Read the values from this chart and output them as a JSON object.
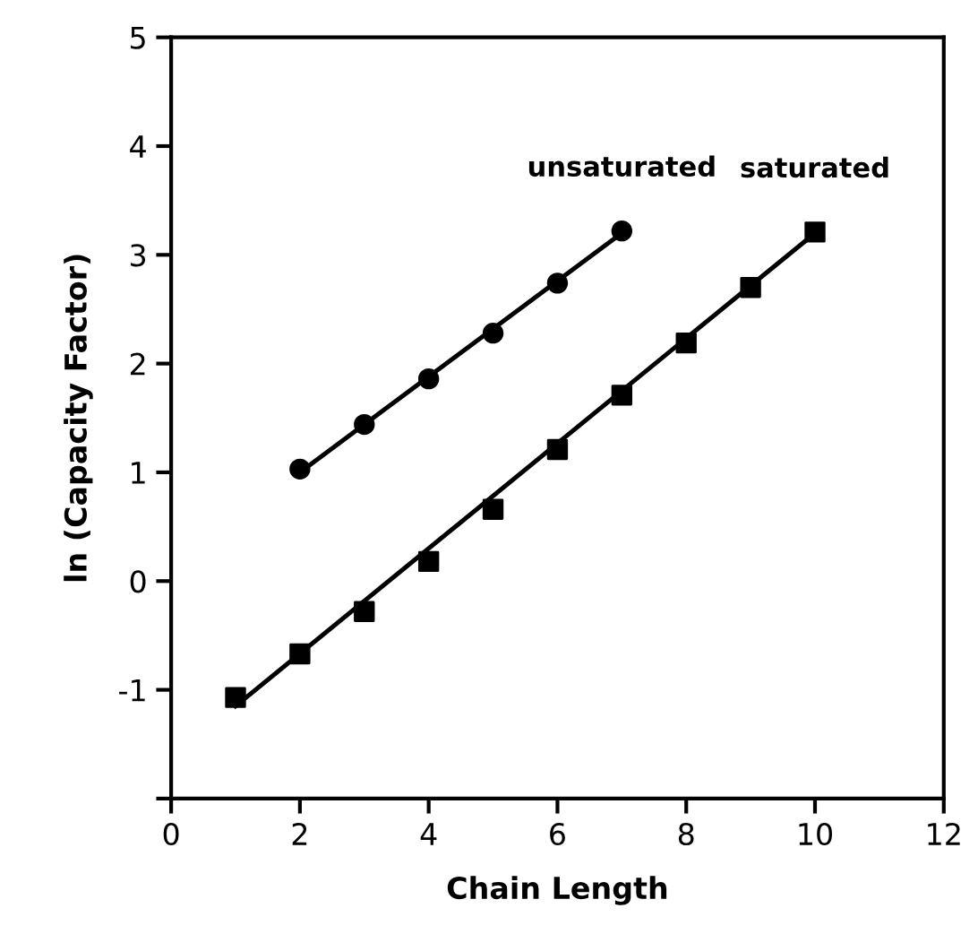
{
  "chart_data": {
    "type": "scatter",
    "xlabel": "Chain Length",
    "ylabel": "ln (Capacity Factor)",
    "xlim": [
      0,
      12
    ],
    "xticks": [
      0,
      2,
      4,
      6,
      8,
      10,
      12
    ],
    "ylim": [
      -2,
      5
    ],
    "yticks": [
      {
        "value": -2,
        "label": null
      },
      -1,
      0,
      1,
      2,
      3,
      4,
      5
    ],
    "grid": false,
    "legend": false,
    "series": [
      {
        "name": "unsaturated",
        "marker": "circle",
        "color": "#000000",
        "x": [
          2,
          3,
          4,
          5,
          6,
          7
        ],
        "values": [
          1.03,
          1.44,
          1.86,
          2.28,
          2.74,
          3.22
        ]
      },
      {
        "name": "saturated",
        "marker": "square",
        "color": "#000000",
        "x": [
          1,
          2,
          3,
          4,
          5,
          6,
          7,
          8,
          9,
          10
        ],
        "values": [
          -1.07,
          -0.67,
          -0.28,
          0.18,
          0.66,
          1.21,
          1.71,
          2.19,
          2.7,
          3.21
        ]
      },
      {
        "type": "line",
        "marker": "none",
        "line_style": "solid",
        "color": "#000000",
        "x": [
          2,
          7
        ],
        "values": [
          1.0,
          3.2
        ]
      },
      {
        "type": "line",
        "marker": "none",
        "line_style": "solid",
        "color": "#000000",
        "x": [
          1,
          10
        ],
        "values": [
          -1.15,
          3.2
        ]
      }
    ]
  }
}
